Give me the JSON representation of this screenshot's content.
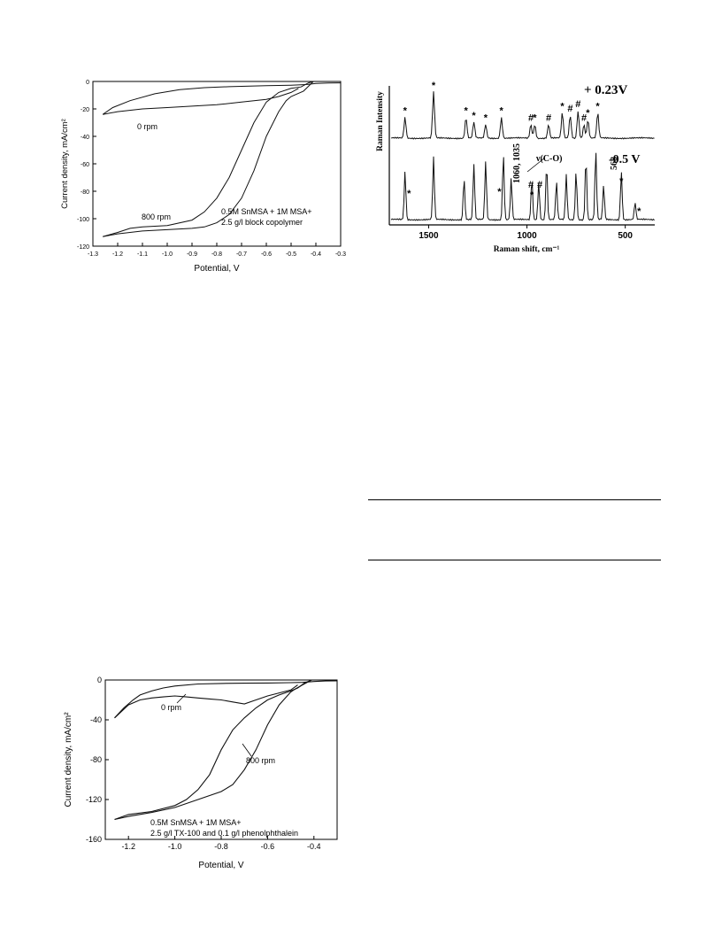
{
  "chart_data": [
    {
      "type": "line",
      "xlabel": "Potential, V",
      "ylabel": "Current density, mA/cm²",
      "xlim": [
        -1.3,
        -0.3
      ],
      "ylim": [
        -120,
        0
      ],
      "x_ticks": [
        "-1.3",
        "-1.2",
        "-1.1",
        "-1.0",
        "-0.9",
        "-0.8",
        "-0.7",
        "-0.6",
        "-0.5",
        "-0.4",
        "-0.3"
      ],
      "y_ticks": [
        "0",
        "-20",
        "-40",
        "-60",
        "-80",
        "-100",
        "-120"
      ],
      "annotations": [
        "0 rpm",
        "800 rpm",
        "0.5M SnMSA + 1M MSA+",
        "2.5 g/l block copolymer"
      ],
      "series": [
        {
          "x": [
            -1.26,
            -1.22,
            -1.15,
            -1.05,
            -0.95,
            -0.85,
            -0.75,
            -0.65,
            -0.6,
            -0.55,
            -0.5,
            -0.47,
            -0.45,
            -0.43,
            -0.4,
            -0.35,
            -0.3
          ],
          "y": [
            -24,
            -19,
            -14,
            -9,
            -6,
            -4.5,
            -3.8,
            -3.3,
            -3.1,
            -2.9,
            -2.7,
            -2.5,
            -2.3,
            -2.1,
            -1.5,
            -1.1,
            -1
          ]
        },
        {
          "x": [
            -0.47,
            -0.5,
            -0.55,
            -0.6,
            -0.7,
            -0.8,
            -0.9,
            -1.0,
            -1.1,
            -1.2,
            -1.26
          ],
          "y": [
            -5,
            -8,
            -11,
            -13,
            -15,
            -17,
            -18,
            -19,
            -20,
            -22,
            -24
          ]
        },
        {
          "x": [
            -1.26,
            -1.2,
            -1.15,
            -1.1,
            -1.0,
            -0.9,
            -0.85,
            -0.8,
            -0.75,
            -0.7,
            -0.65,
            -0.6,
            -0.55,
            -0.5,
            -0.46,
            -0.43,
            -0.41
          ],
          "y": [
            -113,
            -110,
            -107,
            -106,
            -105,
            -101,
            -95,
            -85,
            -70,
            -50,
            -30,
            -15,
            -8,
            -5,
            -4,
            -1,
            0
          ]
        },
        {
          "x": [
            -0.41,
            -0.45,
            -0.5,
            -0.52,
            -0.55,
            -0.6,
            -0.65,
            -0.7,
            -0.75,
            -0.8,
            -0.85,
            -0.9,
            -1.0,
            -1.1,
            -1.2,
            -1.26
          ],
          "y": [
            0,
            -7,
            -11,
            -14,
            -22,
            -40,
            -65,
            -85,
            -97,
            -103,
            -106,
            -107,
            -108,
            -109,
            -111,
            -113
          ]
        }
      ]
    },
    {
      "type": "line",
      "xlabel": "Raman shift, cm⁻¹",
      "ylabel": "Raman Intensity",
      "xlim": [
        1700,
        350
      ],
      "x_ticks": [
        "1500",
        "1000",
        "500"
      ],
      "annotations": [
        "+ 0.23V",
        "-0.5 V",
        "ν(C-O)",
        "1060, 1035",
        "568"
      ],
      "peak_markers_top": [
        "*",
        "*",
        "*",
        "*",
        "*",
        "*",
        "#",
        "*",
        "#",
        "*",
        "#",
        "#",
        "#",
        "*",
        "*"
      ],
      "peak_markers_bottom": [
        "*",
        "*",
        "#",
        "*",
        "#",
        "*",
        "*"
      ],
      "series": [
        {
          "name": "+ 0.23V",
          "x": [
            1620,
            1475,
            1310,
            1270,
            1210,
            1130,
            980,
            960,
            890,
            820,
            780,
            740,
            710,
            690,
            640
          ],
          "y": [
            0.45,
            1.0,
            0.45,
            0.35,
            0.3,
            0.45,
            0.3,
            0.3,
            0.3,
            0.55,
            0.5,
            0.6,
            0.3,
            0.4,
            0.55
          ]
        },
        {
          "name": "-0.5 V",
          "x": [
            1620,
            1475,
            1320,
            1270,
            1210,
            1120,
            1080,
            975,
            940,
            900,
            850,
            800,
            750,
            700,
            650,
            610,
            520,
            450
          ],
          "y": [
            0.7,
            0.9,
            0.6,
            0.8,
            0.85,
            0.95,
            0.6,
            0.6,
            0.55,
            0.8,
            0.55,
            0.65,
            0.7,
            0.9,
            1.0,
            0.5,
            0.7,
            0.25
          ]
        }
      ]
    },
    {
      "type": "line",
      "xlabel": "Potential, V",
      "ylabel": "Current density, mA/cm²",
      "xlim": [
        -1.3,
        -0.3
      ],
      "ylim": [
        -160,
        0
      ],
      "x_ticks": [
        "-1.2",
        "-1.0",
        "-0.8",
        "-0.6",
        "-0.4"
      ],
      "y_ticks": [
        "0",
        "-40",
        "-80",
        "-120",
        "-160"
      ],
      "annotations": [
        "0 rpm",
        "800 rpm",
        "0.5M SnMSA + 1M MSA+",
        "2.5 g/l TX-100 and 0.1 g/l phenolphthalein"
      ],
      "series": [
        {
          "x": [
            -1.26,
            -1.22,
            -1.18,
            -1.15,
            -1.1,
            -1.05,
            -1.0,
            -0.9,
            -0.8,
            -0.7,
            -0.6,
            -0.5,
            -0.45,
            -0.4,
            -0.35,
            -0.3
          ],
          "y": [
            -38,
            -28,
            -20,
            -15,
            -11,
            -8,
            -6,
            -4,
            -3.5,
            -3.2,
            -3,
            -2.7,
            -2.4,
            -1.5,
            -1,
            -0.8
          ]
        },
        {
          "x": [
            -0.47,
            -0.5,
            -0.55,
            -0.6,
            -0.65,
            -0.7,
            -0.75,
            -0.8,
            -0.85,
            -0.9,
            -0.95,
            -1.0,
            -1.05,
            -1.1,
            -1.15,
            -1.2,
            -1.26
          ],
          "y": [
            -5,
            -10,
            -13,
            -16,
            -20,
            -24,
            -22,
            -20,
            -19,
            -18,
            -17,
            -16,
            -17,
            -18,
            -20,
            -25,
            -38
          ]
        },
        {
          "x": [
            -1.26,
            -1.2,
            -1.1,
            -1.0,
            -0.95,
            -0.9,
            -0.85,
            -0.8,
            -0.75,
            -0.7,
            -0.65,
            -0.6,
            -0.55,
            -0.5,
            -0.47,
            -0.44,
            -0.41
          ],
          "y": [
            -140,
            -135,
            -132,
            -126,
            -120,
            -110,
            -95,
            -70,
            -50,
            -38,
            -28,
            -20,
            -15,
            -11,
            -8,
            -3,
            0
          ]
        },
        {
          "x": [
            -0.41,
            -0.45,
            -0.48,
            -0.5,
            -0.55,
            -0.6,
            -0.65,
            -0.7,
            -0.75,
            -0.8,
            -0.9,
            -1.0,
            -1.1,
            -1.2,
            -1.26
          ],
          "y": [
            0,
            -5,
            -9,
            -12,
            -25,
            -45,
            -70,
            -90,
            -105,
            -112,
            -120,
            -128,
            -133,
            -137,
            -140
          ]
        }
      ]
    }
  ]
}
